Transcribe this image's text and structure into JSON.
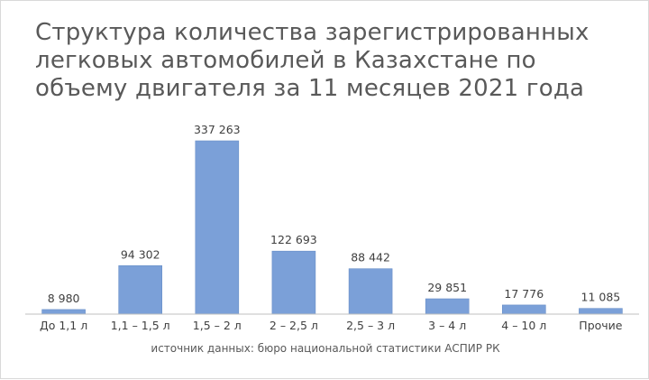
{
  "chart_data": {
    "type": "bar",
    "title": "Структура количества зарегистрированных легковых автомобилей в Казахстане по объему двигателя за 11 месяцев 2021 года",
    "categories": [
      "До 1,1 л",
      "1,1 – 1,5 л",
      "1,5 – 2 л",
      "2 – 2,5 л",
      "2,5 – 3 л",
      "3 – 4 л",
      "4 – 10 л",
      "Прочие"
    ],
    "values": [
      8980,
      94302,
      337263,
      122693,
      88442,
      29851,
      17776,
      11085
    ],
    "data_labels": [
      "8 980",
      "94 302",
      "337 263",
      "122 693",
      "88 442",
      "29 851",
      "17 776",
      "11 085"
    ],
    "xlabel": "",
    "ylabel": "",
    "ylim": [
      0,
      337263
    ],
    "grid": false,
    "legend": "none",
    "source": "источник данных: бюро национальной статистики АСПИР РК",
    "colors": {
      "bar": "#7ba0d8",
      "bar_edge": "#6a8fc8",
      "axis": "#bfbfbf",
      "text": "#404040",
      "title": "#595959"
    }
  }
}
